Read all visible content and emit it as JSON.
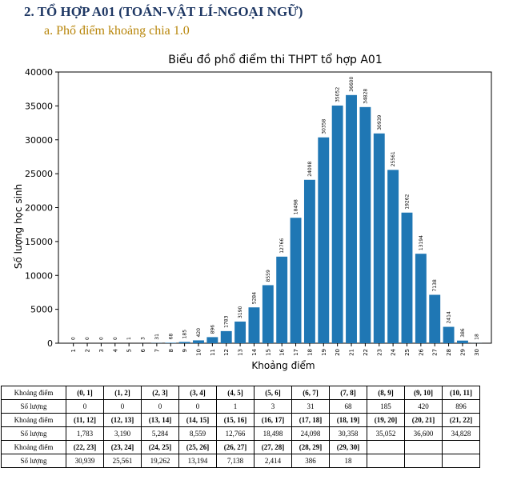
{
  "section": {
    "heading": "2.  TỔ HỢP A01 (TOÁN-VẬT LÍ-NGOẠI NGỮ)",
    "subheading": "a.   Phổ điểm khoảng chia 1.0"
  },
  "chart_data": {
    "type": "bar",
    "title": "Biểu đồ phổ điểm thi THPT tổ hợp A01",
    "xlabel": "Khoảng điểm",
    "ylabel": "Số lượng học sinh",
    "categories": [
      "1",
      "2",
      "3",
      "4",
      "5",
      "6",
      "7",
      "8",
      "9",
      "10",
      "11",
      "12",
      "13",
      "14",
      "15",
      "16",
      "17",
      "18",
      "19",
      "20",
      "21",
      "22",
      "23",
      "24",
      "25",
      "26",
      "27",
      "28",
      "29",
      "30"
    ],
    "values": [
      0,
      0,
      0,
      0,
      1,
      3,
      31,
      68,
      185,
      420,
      896,
      1783,
      3190,
      5284,
      8559,
      12766,
      18498,
      24098,
      30358,
      35052,
      36600,
      34828,
      30939,
      25561,
      19262,
      13194,
      7138,
      2414,
      386,
      18
    ],
    "ylim": [
      0,
      40000
    ],
    "yticks": [
      0,
      5000,
      10000,
      15000,
      20000,
      25000,
      30000,
      35000,
      40000
    ],
    "bar_color": "#1f77b4",
    "grid": false
  },
  "table": {
    "header_range": "Khoảng điểm",
    "header_count": "Số lượng",
    "rows": [
      {
        "ranges": [
          "(0, 1]",
          "(1, 2]",
          "(2, 3]",
          "(3, 4]",
          "(4, 5]",
          "(5, 6]",
          "(6, 7]",
          "(7, 8]",
          "(8, 9]",
          "(9, 10]",
          "(10, 11]"
        ],
        "counts": [
          "0",
          "0",
          "0",
          "0",
          "1",
          "3",
          "31",
          "68",
          "185",
          "420",
          "896"
        ]
      },
      {
        "ranges": [
          "(11, 12]",
          "(12, 13]",
          "(13, 14]",
          "(14, 15]",
          "(15, 16]",
          "(16, 17]",
          "(17, 18]",
          "(18, 19]",
          "(19, 20]",
          "(20, 21]",
          "(21, 22]"
        ],
        "counts": [
          "1,783",
          "3,190",
          "5,284",
          "8,559",
          "12,766",
          "18,498",
          "24,098",
          "30,358",
          "35,052",
          "36,600",
          "34,828"
        ]
      },
      {
        "ranges": [
          "(22, 23]",
          "(23, 24]",
          "(24, 25]",
          "(25, 26]",
          "(26, 27]",
          "(27, 28]",
          "(28, 29]",
          "(29, 30]",
          "",
          "",
          ""
        ],
        "counts": [
          "30,939",
          "25,561",
          "19,262",
          "13,194",
          "7,138",
          "2,414",
          "386",
          "18",
          "",
          "",
          ""
        ]
      }
    ]
  }
}
